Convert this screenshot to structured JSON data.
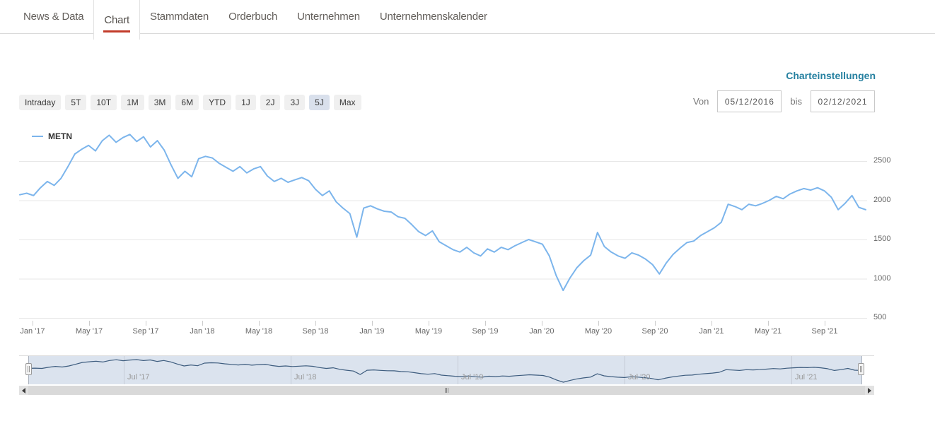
{
  "tabs": {
    "items": [
      {
        "label": "News & Data",
        "active": false
      },
      {
        "label": "Chart",
        "active": true
      },
      {
        "label": "Stammdaten",
        "active": false
      },
      {
        "label": "Orderbuch",
        "active": false
      },
      {
        "label": "Unternehmen",
        "active": false
      },
      {
        "label": "Unternehmenskalender",
        "active": false
      }
    ]
  },
  "chart_settings": {
    "label": "Charteinstellungen"
  },
  "range_toolbar": {
    "buttons": [
      {
        "label": "Intraday",
        "selected": false
      },
      {
        "label": "5T",
        "selected": false
      },
      {
        "label": "10T",
        "selected": false
      },
      {
        "label": "1M",
        "selected": false
      },
      {
        "label": "3M",
        "selected": false
      },
      {
        "label": "6M",
        "selected": false
      },
      {
        "label": "YTD",
        "selected": false
      },
      {
        "label": "1J",
        "selected": false
      },
      {
        "label": "2J",
        "selected": false
      },
      {
        "label": "3J",
        "selected": false
      },
      {
        "label": "5J",
        "selected": true
      },
      {
        "label": "Max",
        "selected": false
      }
    ]
  },
  "date_range": {
    "from_label": "Von",
    "from_value": "05/12/2016",
    "to_label": "bis",
    "to_value": "02/12/2021"
  },
  "chart_data": {
    "type": "line",
    "title": "",
    "legend_position": "top-left",
    "grid": "horizontal",
    "x_start": "05/12/2016",
    "x_end": "02/12/2021",
    "x_tick_labels": [
      "Jan '17",
      "May '17",
      "Sep '17",
      "Jan '18",
      "May '18",
      "Sep '18",
      "Jan '19",
      "May '19",
      "Sep '19",
      "Jan '20",
      "May '20",
      "Sep '20",
      "Jan '21",
      "May '21",
      "Sep '21"
    ],
    "y_tick_labels": [
      "2500",
      "2000",
      "1500",
      "1000",
      "500"
    ],
    "y_ticks": [
      500,
      1000,
      1500,
      2000,
      2500
    ],
    "ylim": [
      390,
      2890
    ],
    "series": [
      {
        "name": "METN",
        "color": "#7cb5ec",
        "values": [
          2070,
          2090,
          2060,
          2160,
          2240,
          2190,
          2280,
          2430,
          2590,
          2650,
          2700,
          2630,
          2760,
          2830,
          2740,
          2800,
          2840,
          2750,
          2810,
          2680,
          2760,
          2640,
          2450,
          2280,
          2370,
          2300,
          2530,
          2560,
          2540,
          2470,
          2420,
          2370,
          2430,
          2350,
          2400,
          2430,
          2310,
          2240,
          2280,
          2230,
          2260,
          2290,
          2250,
          2140,
          2060,
          2120,
          1980,
          1900,
          1830,
          1530,
          1900,
          1930,
          1890,
          1860,
          1850,
          1790,
          1770,
          1690,
          1600,
          1550,
          1610,
          1470,
          1420,
          1370,
          1340,
          1400,
          1330,
          1290,
          1380,
          1340,
          1400,
          1370,
          1420,
          1460,
          1500,
          1470,
          1440,
          1290,
          1040,
          850,
          1010,
          1140,
          1230,
          1300,
          1590,
          1410,
          1340,
          1290,
          1260,
          1330,
          1300,
          1250,
          1180,
          1060,
          1200,
          1310,
          1390,
          1460,
          1480,
          1550,
          1600,
          1650,
          1720,
          1950,
          1920,
          1880,
          1950,
          1930,
          1960,
          2000,
          2050,
          2020,
          2080,
          2120,
          2150,
          2130,
          2160,
          2120,
          2040,
          1880,
          1960,
          2060,
          1910,
          1880
        ]
      }
    ],
    "navigator": {
      "x_tick_labels": [
        "Jul '17",
        "Jul '18",
        "Jul '19",
        "Jul '20",
        "Jul '21"
      ]
    }
  },
  "colors": {
    "accent_underline": "#c23c2a",
    "settings_link": "#2580a0",
    "series_line": "#7cb5ec",
    "navigator_line": "#3d5c7e",
    "navigator_fill": "#dbe3ee",
    "selected_button_bg": "#d9e0ec",
    "grid_line": "#e7e7e7"
  }
}
